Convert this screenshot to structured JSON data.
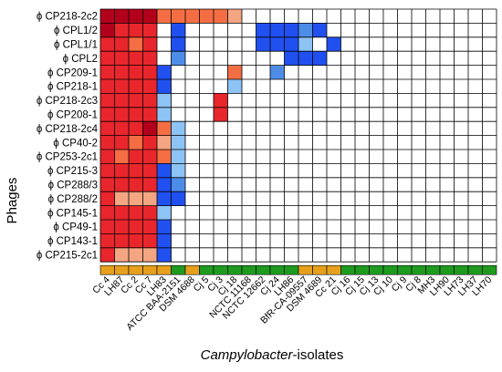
{
  "chart_data": {
    "type": "heatmap",
    "title": "",
    "xlabel_italic": "Campylobacter",
    "xlabel_rest": "-isolates",
    "ylabel": "Phages",
    "rows": [
      "ϕ CP218-2c2",
      "ϕ CPL1/2",
      "ϕ CPL1/1",
      "ϕ CPL2",
      "ϕ CP209-1",
      "ϕ CP218-1",
      "ϕ CP218-2c3",
      "ϕ CP208-1",
      "ϕ CP218-2c4",
      "ϕ CP40-2",
      "ϕ CP253-2c1",
      "ϕ CP215-3",
      "ϕ CP288/3",
      "ϕ CP288/2",
      "ϕ CP145-1",
      "ϕ CP49-1",
      "ϕ CP143-1",
      "ϕ CP215-2c1"
    ],
    "columns": [
      "Cc 4",
      "LH87",
      "Cc 2",
      "Cc 7",
      "LH83",
      "ATCC BAA-2151",
      "DSM 4688",
      "Cj 5",
      "Cj 3",
      "Cj 18",
      "NCTC 11168",
      "NCTC 12662",
      "Cj 24",
      "LH86",
      "BfR-CA-09557",
      "DSM 4689",
      "Cc 21",
      "Cj 16",
      "Cj 15",
      "Cj 13",
      "Cj 10",
      "Cj 9",
      "Cj 8",
      "MH3",
      "LH90",
      "LH73",
      "LH37",
      "LH70"
    ],
    "column_species_colors": [
      "orange",
      "orange",
      "orange",
      "orange",
      "orange",
      "green",
      "orange",
      "green",
      "green",
      "green",
      "green",
      "green",
      "green",
      "green",
      "orange",
      "orange",
      "orange",
      "green",
      "green",
      "green",
      "green",
      "green",
      "green",
      "green",
      "green",
      "green",
      "green",
      "green"
    ],
    "colors": {
      "0": "#ffffff",
      "1": "#e8262c",
      "2": "#f4a582",
      "3": "#f46d43",
      "4": "#b2001c",
      "5": "#8dc3f5",
      "6": "#4d8de8",
      "7": "#2150f0",
      "orange": "#e7a01c",
      "green": "#1e9b1e",
      "grid": "#000000"
    },
    "values": [
      [
        4,
        4,
        4,
        4,
        3,
        3,
        3,
        3,
        3,
        2,
        0,
        0,
        0,
        0,
        0,
        0,
        0,
        0,
        0,
        0,
        0,
        0,
        0,
        0,
        0,
        0,
        0,
        0
      ],
      [
        4,
        1,
        1,
        1,
        0,
        7,
        0,
        0,
        0,
        0,
        0,
        7,
        7,
        7,
        6,
        7,
        0,
        0,
        0,
        0,
        0,
        0,
        0,
        0,
        0,
        0,
        0,
        0
      ],
      [
        1,
        1,
        3,
        1,
        0,
        7,
        0,
        0,
        0,
        0,
        0,
        7,
        7,
        7,
        5,
        0,
        7,
        0,
        0,
        0,
        0,
        0,
        0,
        0,
        0,
        0,
        0,
        0
      ],
      [
        1,
        1,
        1,
        1,
        0,
        6,
        0,
        0,
        0,
        0,
        0,
        0,
        0,
        7,
        7,
        7,
        0,
        0,
        0,
        0,
        0,
        0,
        0,
        0,
        0,
        0,
        0,
        0
      ],
      [
        1,
        1,
        1,
        1,
        7,
        0,
        0,
        0,
        0,
        3,
        0,
        0,
        6,
        0,
        0,
        0,
        0,
        0,
        0,
        0,
        0,
        0,
        0,
        0,
        0,
        0,
        0,
        0
      ],
      [
        1,
        1,
        1,
        1,
        7,
        0,
        0,
        0,
        0,
        5,
        0,
        0,
        0,
        0,
        0,
        0,
        0,
        0,
        0,
        0,
        0,
        0,
        0,
        0,
        0,
        0,
        0,
        0
      ],
      [
        1,
        1,
        1,
        1,
        5,
        0,
        0,
        0,
        1,
        0,
        0,
        0,
        0,
        0,
        0,
        0,
        0,
        0,
        0,
        0,
        0,
        0,
        0,
        0,
        0,
        0,
        0,
        0
      ],
      [
        1,
        1,
        1,
        1,
        5,
        0,
        0,
        0,
        1,
        0,
        0,
        0,
        0,
        0,
        0,
        0,
        0,
        0,
        0,
        0,
        0,
        0,
        0,
        0,
        0,
        0,
        0,
        0
      ],
      [
        1,
        1,
        1,
        4,
        3,
        5,
        0,
        0,
        0,
        0,
        0,
        0,
        0,
        0,
        0,
        0,
        0,
        0,
        0,
        0,
        0,
        0,
        0,
        0,
        0,
        0,
        0,
        0
      ],
      [
        1,
        1,
        3,
        1,
        2,
        5,
        0,
        0,
        0,
        0,
        0,
        0,
        0,
        0,
        0,
        0,
        0,
        0,
        0,
        0,
        0,
        0,
        0,
        0,
        0,
        0,
        0,
        0
      ],
      [
        1,
        3,
        1,
        1,
        3,
        5,
        0,
        0,
        0,
        0,
        0,
        0,
        0,
        0,
        0,
        0,
        0,
        0,
        0,
        0,
        0,
        0,
        0,
        0,
        0,
        0,
        0,
        0
      ],
      [
        1,
        1,
        1,
        1,
        7,
        5,
        0,
        0,
        0,
        0,
        0,
        0,
        0,
        0,
        0,
        0,
        0,
        0,
        0,
        0,
        0,
        0,
        0,
        0,
        0,
        0,
        0,
        0
      ],
      [
        1,
        1,
        1,
        1,
        7,
        6,
        0,
        0,
        0,
        0,
        0,
        0,
        0,
        0,
        0,
        0,
        0,
        0,
        0,
        0,
        0,
        0,
        0,
        0,
        0,
        0,
        0,
        0
      ],
      [
        1,
        2,
        2,
        2,
        7,
        7,
        0,
        0,
        0,
        0,
        0,
        0,
        0,
        0,
        0,
        0,
        0,
        0,
        0,
        0,
        0,
        0,
        0,
        0,
        0,
        0,
        0,
        0
      ],
      [
        1,
        1,
        1,
        1,
        5,
        0,
        0,
        0,
        0,
        0,
        0,
        0,
        0,
        0,
        0,
        0,
        0,
        0,
        0,
        0,
        0,
        0,
        0,
        0,
        0,
        0,
        0,
        0
      ],
      [
        1,
        1,
        1,
        1,
        7,
        0,
        0,
        0,
        0,
        0,
        0,
        0,
        0,
        0,
        0,
        0,
        0,
        0,
        0,
        0,
        0,
        0,
        0,
        0,
        0,
        0,
        0,
        0
      ],
      [
        1,
        1,
        1,
        1,
        7,
        0,
        0,
        0,
        0,
        0,
        0,
        0,
        0,
        0,
        0,
        0,
        0,
        0,
        0,
        0,
        0,
        0,
        0,
        0,
        0,
        0,
        0,
        0
      ],
      [
        1,
        2,
        2,
        2,
        7,
        0,
        0,
        0,
        0,
        0,
        0,
        0,
        0,
        0,
        0,
        0,
        0,
        0,
        0,
        0,
        0,
        0,
        0,
        0,
        0,
        0,
        0,
        0
      ]
    ]
  }
}
